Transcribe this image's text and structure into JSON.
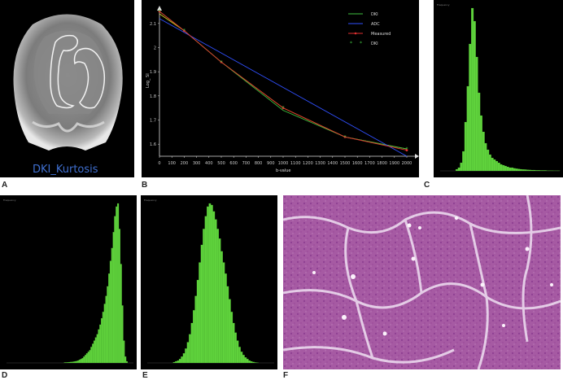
{
  "figure": {
    "panel_labels": [
      "A",
      "B",
      "C",
      "D",
      "E",
      "F"
    ],
    "panel_a": {
      "caption": "DKI_Kurtosis"
    },
    "histogram_label": "Frequency",
    "hist_c": [
      0,
      0,
      0,
      0,
      0,
      0,
      0,
      1,
      2,
      5,
      12,
      30,
      52,
      78,
      100,
      92,
      70,
      48,
      34,
      24,
      17,
      13,
      10,
      8,
      7,
      6,
      5,
      4,
      3.5,
      3,
      2.5,
      2,
      2,
      1.6,
      1.4,
      1.2,
      1,
      0.9,
      0.8,
      0.7,
      0.6,
      0.5,
      0.5,
      0.4,
      0.4,
      0.3,
      0.3,
      0.3,
      0.2,
      0.2,
      0.2,
      0.1,
      0.1,
      0.1
    ],
    "hist_d": [
      0,
      0,
      0,
      0,
      0,
      0,
      0,
      0,
      0,
      0,
      0,
      0,
      0,
      0,
      0,
      0,
      0,
      0,
      0,
      0,
      0,
      0,
      0,
      0,
      0,
      0,
      0,
      0,
      0,
      0,
      0,
      0,
      0,
      0,
      0,
      0,
      0,
      0,
      0,
      0.3,
      0.3,
      0.4,
      0.5,
      0.6,
      0.7,
      0.8,
      1,
      1.2,
      1.5,
      2,
      2.5,
      3,
      4,
      5,
      6,
      7,
      8,
      10,
      12,
      14,
      16,
      18,
      21,
      24,
      28,
      32,
      37,
      42,
      48,
      56,
      64,
      72,
      82,
      92,
      98,
      100,
      84,
      62,
      36,
      14,
      4,
      1,
      0,
      0,
      0,
      0
    ],
    "hist_e": [
      0,
      0,
      0,
      0,
      0,
      0,
      0,
      0,
      0,
      0,
      0,
      0,
      0,
      0.5,
      1,
      1.5,
      2.5,
      4,
      6,
      9,
      13,
      18,
      25,
      33,
      42,
      52,
      63,
      74,
      84,
      92,
      98,
      100,
      99,
      95,
      90,
      84,
      78,
      70,
      63,
      56,
      48,
      40,
      32,
      25,
      19,
      14,
      10,
      7,
      5,
      3.5,
      2.5,
      1.5,
      1,
      0.6,
      0.3,
      0.2,
      0,
      0,
      0,
      0,
      0,
      0,
      0,
      0
    ]
  },
  "chart_data": {
    "type": "line",
    "title": "",
    "xlabel": "b-value",
    "ylabel": "Log_ SI",
    "xlim": [
      0,
      2000
    ],
    "ylim": [
      1.55,
      2.15
    ],
    "x_ticks": [
      0,
      100,
      200,
      300,
      400,
      500,
      600,
      700,
      800,
      900,
      1000,
      1100,
      1200,
      1300,
      1400,
      1500,
      1600,
      1700,
      1800,
      1900,
      2000
    ],
    "y_ticks": [
      1.6,
      1.7,
      1.8,
      1.9,
      2,
      2.1
    ],
    "series": [
      {
        "name": "DKI",
        "color": "#3fbf3f",
        "style": "line",
        "x": [
          0,
          200,
          500,
          1000,
          1500,
          2000
        ],
        "y": [
          2.15,
          2.07,
          1.94,
          1.74,
          1.63,
          1.58
        ]
      },
      {
        "name": "ADC",
        "color": "#3050ff",
        "style": "line",
        "x": [
          0,
          2000
        ],
        "y": [
          2.12,
          1.55
        ]
      },
      {
        "name": "Measured",
        "color": "#e03030",
        "style": "line-marker",
        "x": [
          0,
          200,
          500,
          1000,
          1500,
          2000
        ],
        "y": [
          2.15,
          2.07,
          1.94,
          1.75,
          1.63,
          1.575
        ]
      },
      {
        "name": "DKI",
        "color": "#3fbf3f",
        "style": "marker",
        "x": [
          0,
          200,
          500,
          1000,
          1500,
          2000
        ],
        "y": [
          2.15,
          2.07,
          1.94,
          1.75,
          1.63,
          1.58
        ]
      }
    ],
    "fit_curve": {
      "color": "#d0d020",
      "x": [
        0,
        200,
        500,
        1000,
        1500,
        2000
      ],
      "y": [
        2.14,
        2.07,
        1.94,
        1.75,
        1.63,
        1.58
      ]
    },
    "legend_position": "top-right"
  }
}
